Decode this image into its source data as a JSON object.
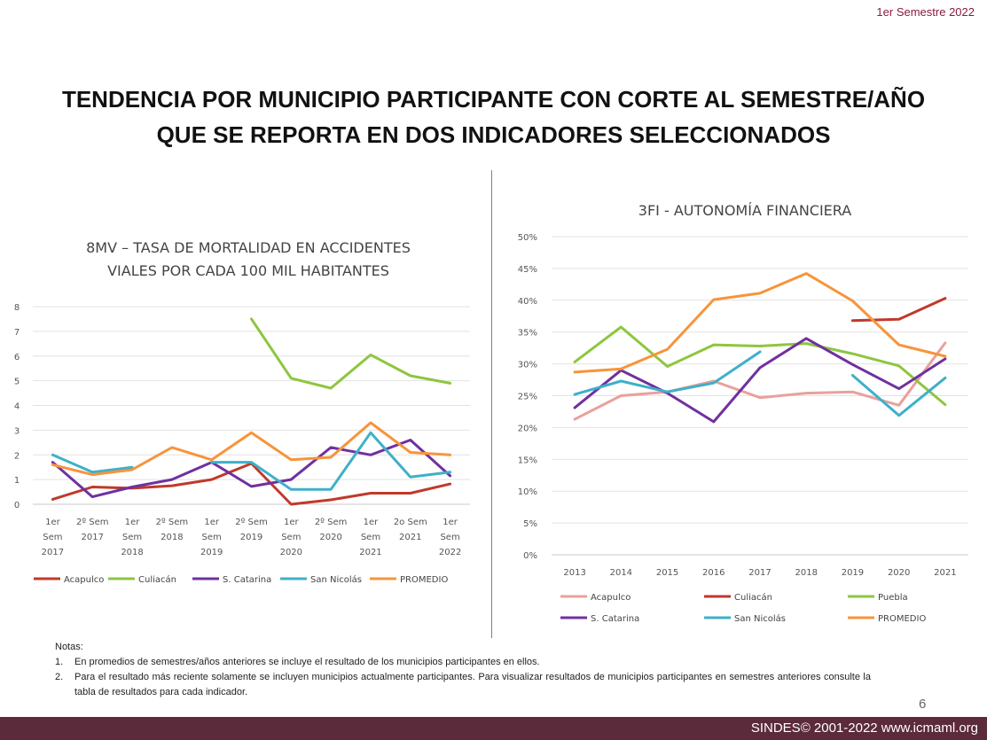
{
  "header": {
    "semester_label": "1er  Semestre 2022"
  },
  "title": {
    "line1": "TENDENCIA POR MUNICIPIO PARTICIPANTE CON CORTE AL SEMESTRE/AÑO",
    "line2": "QUE SE REPORTA EN DOS INDICADORES SELECCIONADOS"
  },
  "chart_data": [
    {
      "type": "line",
      "title": "8MV – TASA DE MORTALIDAD EN ACCIDENTES VIALES POR CADA 100 MIL HABITANTES",
      "title_lines": [
        "8MV – TASA DE MORTALIDAD EN ACCIDENTES",
        "VIALES POR CADA 100 MIL HABITANTES"
      ],
      "categories": [
        [
          "1er",
          "Sem",
          "2017"
        ],
        [
          "2º Sem",
          "2017"
        ],
        [
          "1er",
          "Sem",
          "2018"
        ],
        [
          "2º Sem",
          "2018"
        ],
        [
          "1er",
          "Sem",
          "2019"
        ],
        [
          "2º Sem",
          "2019"
        ],
        [
          "1er",
          "Sem",
          "2020"
        ],
        [
          "2º Sem",
          "2020"
        ],
        [
          "1er",
          "Sem",
          "2021"
        ],
        [
          "2o Sem",
          "2021"
        ],
        [
          "1er",
          "Sem",
          "2022"
        ]
      ],
      "ylim": [
        0,
        8
      ],
      "yticks": [
        0,
        1,
        2,
        3,
        4,
        5,
        6,
        7,
        8
      ],
      "grid": true,
      "legend_position": "bottom",
      "series": [
        {
          "name": "Acapulco",
          "color": "#c0392b",
          "values": [
            0.2,
            0.7,
            0.65,
            0.75,
            1.0,
            1.65,
            0.0,
            0.18,
            0.45,
            0.45,
            0.82
          ]
        },
        {
          "name": "Culiacán",
          "color": "#8dc63f",
          "values": [
            null,
            null,
            null,
            null,
            null,
            7.5,
            5.1,
            4.7,
            6.05,
            5.2,
            4.9
          ]
        },
        {
          "name": "S. Catarina",
          "color": "#7030a0",
          "values": [
            1.7,
            0.3,
            0.7,
            1.0,
            1.7,
            0.72,
            1.0,
            2.3,
            2.0,
            2.6,
            1.15
          ]
        },
        {
          "name": "San Nicolás",
          "color": "#3eb0c9",
          "values": [
            2.0,
            1.3,
            1.5,
            null,
            1.7,
            1.7,
            0.6,
            0.6,
            2.9,
            1.1,
            1.3
          ]
        },
        {
          "name": "PROMEDIO",
          "color": "#f7943a",
          "values": [
            1.6,
            1.2,
            1.4,
            2.3,
            1.8,
            2.9,
            1.8,
            1.9,
            3.3,
            2.1,
            2.0
          ]
        }
      ]
    },
    {
      "type": "line",
      "title": "3FI - AUTONOMÍA FINANCIERA",
      "categories": [
        "2013",
        "2014",
        "2015",
        "2016",
        "2017",
        "2018",
        "2019",
        "2020",
        "2021"
      ],
      "ylim": [
        0,
        50
      ],
      "yticks": [
        "0%",
        "5%",
        "10%",
        "15%",
        "20%",
        "25%",
        "30%",
        "35%",
        "40%",
        "45%",
        "50%"
      ],
      "grid": true,
      "legend_position": "bottom",
      "series": [
        {
          "name": "Acapulco",
          "color": "#e8a19c",
          "values": [
            21.3,
            25.0,
            25.6,
            27.3,
            24.7,
            25.4,
            25.6,
            23.5,
            33.3
          ]
        },
        {
          "name": "Culiacán",
          "color": "#c0392b",
          "values": [
            null,
            null,
            null,
            null,
            null,
            null,
            36.8,
            37.0,
            40.3
          ]
        },
        {
          "name": "Puebla",
          "color": "#8dc63f",
          "values": [
            30.3,
            35.8,
            29.6,
            33.0,
            32.8,
            33.2,
            31.6,
            29.7,
            23.6
          ]
        },
        {
          "name": "S. Catarina",
          "color": "#7030a0",
          "values": [
            23.1,
            29.0,
            25.4,
            20.9,
            29.4,
            34.0,
            29.9,
            26.1,
            30.8
          ]
        },
        {
          "name": "San Nicolás",
          "color": "#3eb0c9",
          "values": [
            25.2,
            27.3,
            25.6,
            27.0,
            31.9,
            null,
            28.2,
            21.9,
            27.8
          ]
        },
        {
          "name": "PROMEDIO",
          "color": "#f7943a",
          "values": [
            28.7,
            29.2,
            32.3,
            40.1,
            41.1,
            44.2,
            39.9,
            33.0,
            31.2
          ]
        }
      ]
    }
  ],
  "notes": {
    "title": "Notas:",
    "items": [
      {
        "num": "1.",
        "text": "En promedios de semestres/años anteriores se incluye el resultado de los municipios participantes en ellos."
      },
      {
        "num": "2.",
        "text": "Para el resultado más reciente solamente se incluyen municipios actualmente participantes. Para visualizar resultados de municipios participantes en semestres anteriores consulte la tabla de resultados para cada indicador."
      }
    ]
  },
  "page_number": "6",
  "footer": {
    "text": "SINDES© 2001-2022  www.icmaml.org"
  }
}
